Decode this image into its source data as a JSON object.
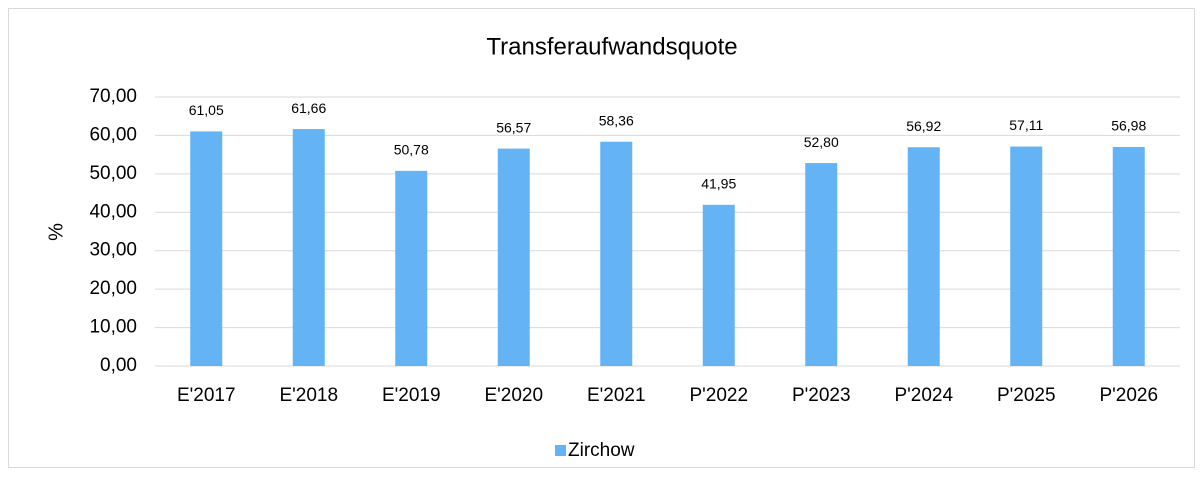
{
  "chart_data": {
    "type": "bar",
    "title": "Transferaufwandsquote",
    "y_label": "%",
    "categories": [
      "E'2017",
      "E'2018",
      "E'2019",
      "E'2020",
      "E'2021",
      "P'2022",
      "P'2023",
      "P'2024",
      "P'2025",
      "P'2026"
    ],
    "series": [
      {
        "name": "Zirchow",
        "color": "#63b3f5",
        "values": [
          61.05,
          61.66,
          50.78,
          56.57,
          58.36,
          41.95,
          52.8,
          56.92,
          57.11,
          56.98
        ],
        "value_labels": [
          "61,05",
          "61,66",
          "50,78",
          "56,57",
          "58,36",
          "41,95",
          "52,80",
          "56,92",
          "57,11",
          "56,98"
        ]
      }
    ],
    "ylim": [
      0,
      70
    ],
    "yticks": [
      {
        "value": 0,
        "label": "0,00"
      },
      {
        "value": 10,
        "label": "10,00"
      },
      {
        "value": 20,
        "label": "20,00"
      },
      {
        "value": 30,
        "label": "30,00"
      },
      {
        "value": 40,
        "label": "40,00"
      },
      {
        "value": 50,
        "label": "50,00"
      },
      {
        "value": 60,
        "label": "60,00"
      },
      {
        "value": 70,
        "label": "70,00"
      }
    ],
    "grid": true,
    "legend": "bottom"
  }
}
